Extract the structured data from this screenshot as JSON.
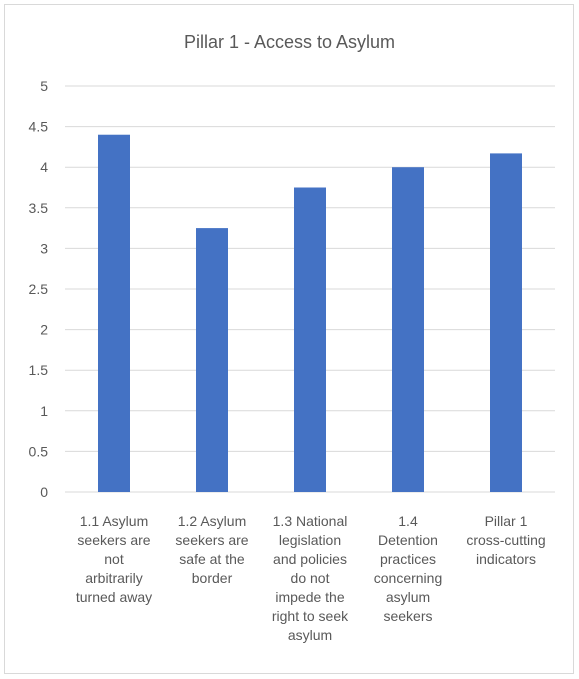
{
  "chart_data": {
    "type": "bar",
    "title": "Pillar 1 - Access to Asylum",
    "categories": [
      [
        "1.1 Asylum",
        "seekers are",
        "not",
        "arbitrarily",
        "turned away"
      ],
      [
        "1.2 Asylum",
        "seekers are",
        "safe at the",
        "border"
      ],
      [
        "1.3 National",
        "legislation",
        "and policies",
        "do not",
        "impede the",
        "right to seek",
        "asylum"
      ],
      [
        "1.4",
        "Detention",
        "practices",
        "concerning",
        "asylum",
        "seekers"
      ],
      [
        "Pillar 1",
        "cross-cutting",
        "indicators"
      ]
    ],
    "values": [
      4.4,
      3.25,
      3.75,
      4.0,
      4.17
    ],
    "ylim": [
      0,
      5
    ],
    "yticks": [
      "0",
      "0.5",
      "1",
      "1.5",
      "2",
      "2.5",
      "3",
      "3.5",
      "4",
      "4.5",
      "5"
    ],
    "xlabel": "",
    "ylabel": "",
    "grid": true,
    "legend": "none",
    "colors": {
      "bar": "#4472c4",
      "grid": "#d9d9d9",
      "text": "#595959"
    }
  }
}
